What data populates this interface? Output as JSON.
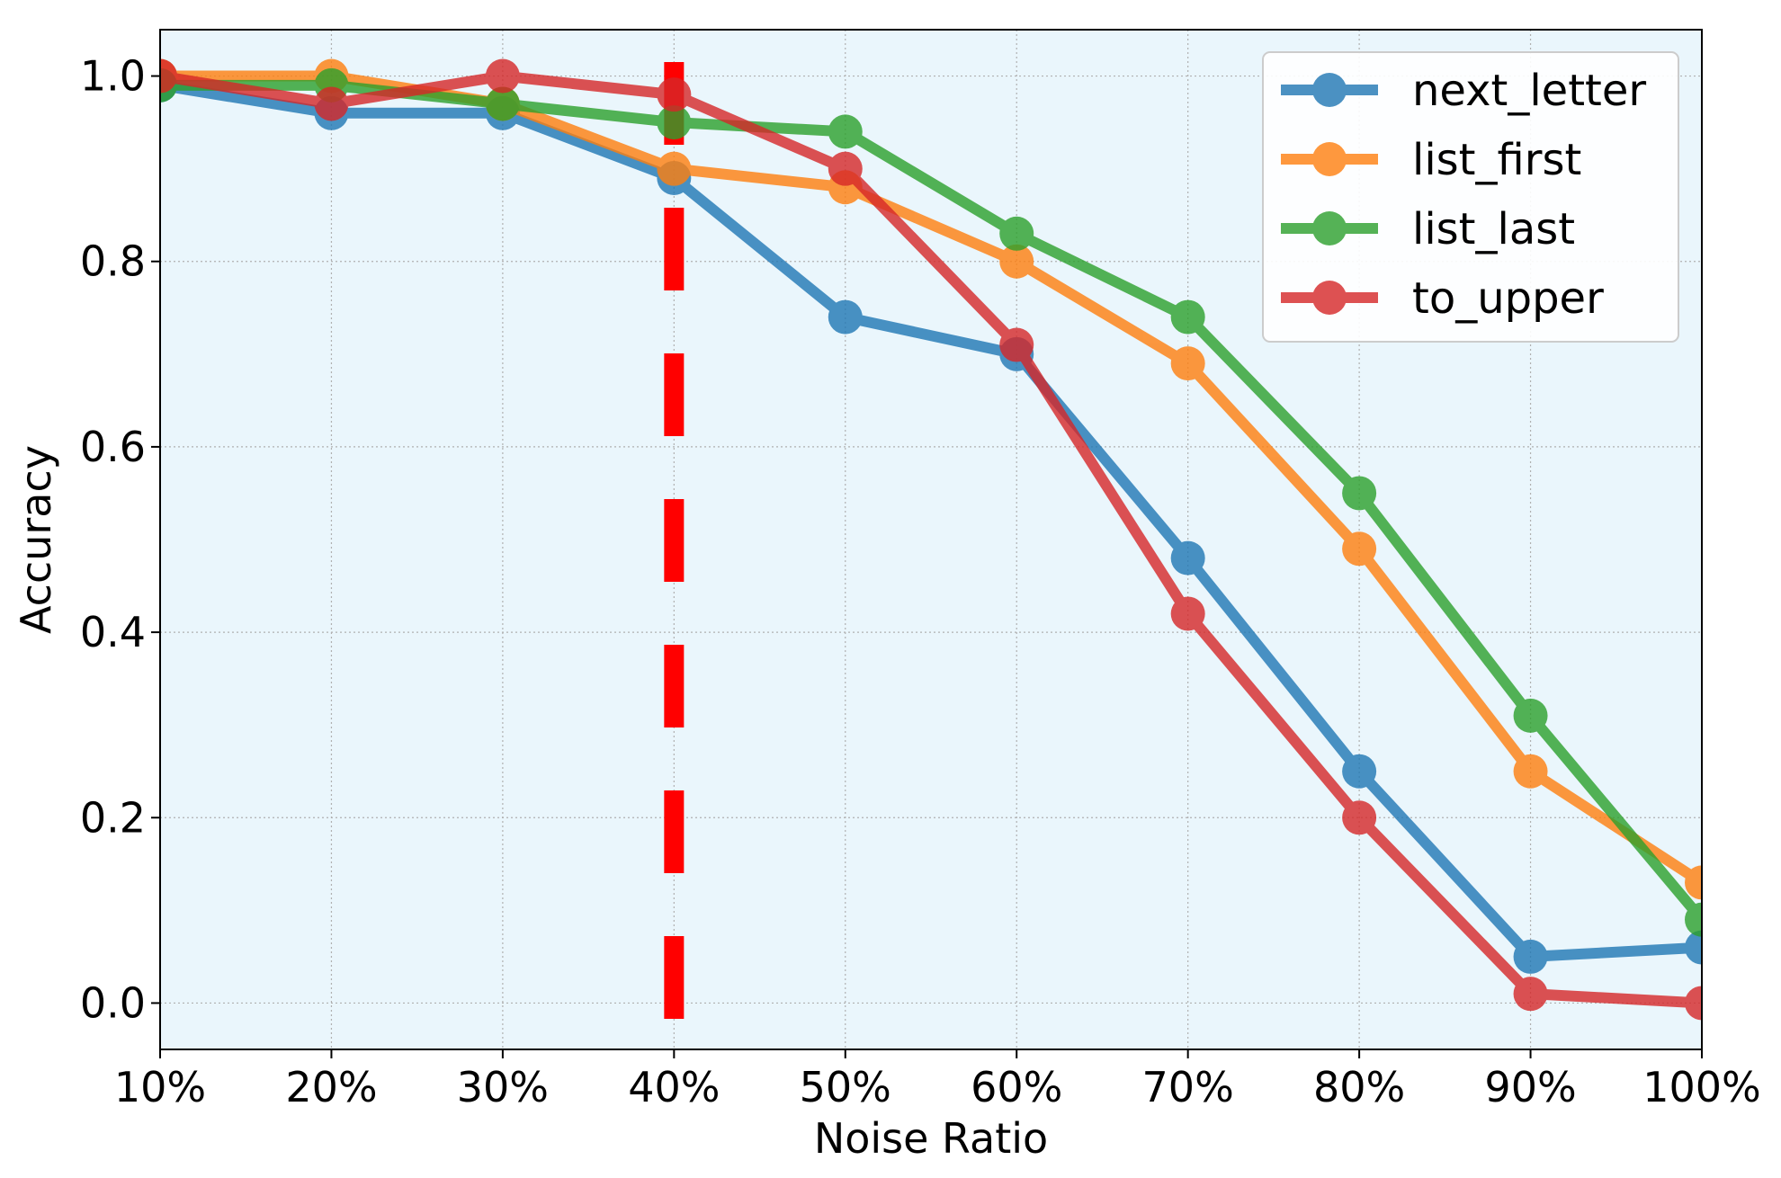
{
  "chart_data": {
    "type": "line",
    "title": "",
    "xlabel": "Noise Ratio",
    "ylabel": "Accuracy",
    "categories": [
      "10%",
      "20%",
      "30%",
      "40%",
      "50%",
      "60%",
      "70%",
      "80%",
      "90%",
      "100%"
    ],
    "y_ticks": [
      "0.0",
      "0.2",
      "0.4",
      "0.6",
      "0.8",
      "1.0"
    ],
    "ylim": [
      -0.05,
      1.05
    ],
    "grid": true,
    "legend_position": "top-right",
    "background_color": "#eaf6fc",
    "reference_line": {
      "x": "40%",
      "style": "dashed",
      "color": "#ff0000"
    },
    "series": [
      {
        "name": "next_letter",
        "color": "#1f77b4",
        "values": [
          0.99,
          0.96,
          0.96,
          0.89,
          0.74,
          0.7,
          0.48,
          0.25,
          0.05,
          0.06
        ]
      },
      {
        "name": "list_first",
        "color": "#ff7f0e",
        "values": [
          1.0,
          1.0,
          0.97,
          0.9,
          0.88,
          0.8,
          0.69,
          0.49,
          0.25,
          0.13
        ]
      },
      {
        "name": "list_last",
        "color": "#2ca02c",
        "values": [
          0.99,
          0.99,
          0.97,
          0.95,
          0.94,
          0.83,
          0.74,
          0.55,
          0.31,
          0.09
        ]
      },
      {
        "name": "to_upper",
        "color": "#d62728",
        "values": [
          1.0,
          0.97,
          1.0,
          0.98,
          0.9,
          0.71,
          0.42,
          0.2,
          0.01,
          0.0
        ]
      }
    ]
  }
}
